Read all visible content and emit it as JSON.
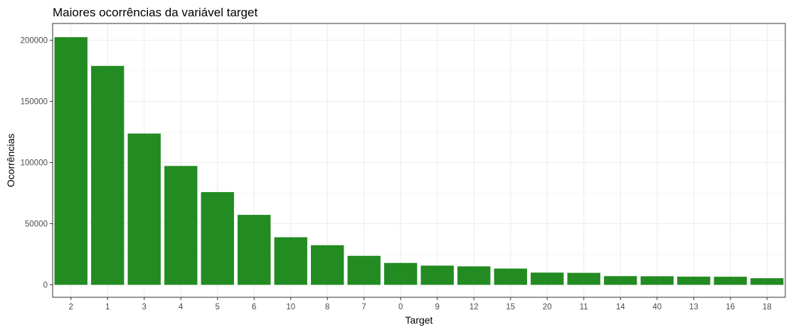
{
  "chart_data": {
    "type": "bar",
    "title": "Maiores ocorrências da variável target",
    "xlabel": "Target",
    "ylabel": "Ocorrências",
    "categories": [
      "2",
      "1",
      "3",
      "4",
      "5",
      "6",
      "10",
      "8",
      "7",
      "0",
      "9",
      "12",
      "15",
      "20",
      "11",
      "14",
      "40",
      "13",
      "16",
      "18"
    ],
    "values": [
      202500,
      179000,
      123700,
      97200,
      75800,
      57200,
      38900,
      32400,
      23700,
      17900,
      15700,
      15100,
      13300,
      10000,
      9800,
      7100,
      7000,
      6700,
      6600,
      5400
    ],
    "yticks": [
      0,
      50000,
      100000,
      150000,
      200000
    ],
    "ytick_labels": [
      "0",
      "50000",
      "100000",
      "150000",
      "200000"
    ],
    "ylim": [
      -10200,
      213700
    ],
    "bar_color": "#228B22",
    "grid": true,
    "legend": "none"
  }
}
